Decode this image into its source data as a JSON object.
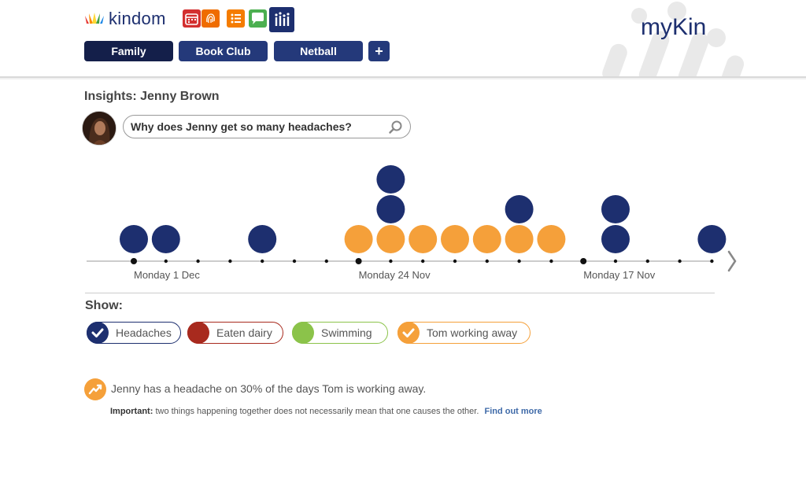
{
  "brand": {
    "name": "kindom",
    "mykin": "myKin"
  },
  "apps": [
    {
      "name": "calendar-icon"
    },
    {
      "name": "fingerprint-icon"
    },
    {
      "name": "list-icon"
    },
    {
      "name": "chat-icon"
    },
    {
      "name": "insights-icon"
    }
  ],
  "tabs": [
    {
      "label": "Family",
      "active": true
    },
    {
      "label": "Book Club"
    },
    {
      "label": "Netball"
    },
    {
      "label": "+"
    }
  ],
  "insights": {
    "title": "Insights: Jenny Brown",
    "question": "Why does Jenny get so many headaches?"
  },
  "timeline": {
    "labels": [
      "Monday 1 Dec",
      "Monday 24 Nov",
      "Monday 17 Nov"
    ],
    "days": 19,
    "events": [
      {
        "day": 0,
        "stack": [
          "headache"
        ]
      },
      {
        "day": 1,
        "stack": [
          "headache"
        ]
      },
      {
        "day": 4,
        "stack": [
          "headache"
        ]
      },
      {
        "day": 7,
        "stack": [
          "tom"
        ]
      },
      {
        "day": 8,
        "stack": [
          "tom",
          "headache",
          "headache"
        ]
      },
      {
        "day": 9,
        "stack": [
          "tom"
        ]
      },
      {
        "day": 10,
        "stack": [
          "tom"
        ]
      },
      {
        "day": 11,
        "stack": [
          "tom"
        ]
      },
      {
        "day": 12,
        "stack": [
          "tom",
          "headache"
        ]
      },
      {
        "day": 13,
        "stack": [
          "tom"
        ]
      },
      {
        "day": 15,
        "stack": [
          "headache",
          "headache"
        ]
      },
      {
        "day": 18,
        "stack": [
          "headache"
        ]
      }
    ]
  },
  "colors": {
    "headache": "#1d2f6f",
    "dairy": "#a82a1e",
    "swimming": "#8bc34a",
    "tom": "#f5a03a"
  },
  "show": {
    "label": "Show:",
    "filters": [
      {
        "label": "Headaches",
        "checked": true
      },
      {
        "label": "Eaten dairy",
        "checked": false
      },
      {
        "label": "Swimming",
        "checked": false
      },
      {
        "label": "Tom working away",
        "checked": true
      }
    ]
  },
  "insight": {
    "text": "Jenny has a headache on 30% of the days Tom is working away.",
    "important_label": "Important:",
    "important_text": "two things happening together does not necessarily mean that one causes the other.",
    "link": "Find out more"
  }
}
